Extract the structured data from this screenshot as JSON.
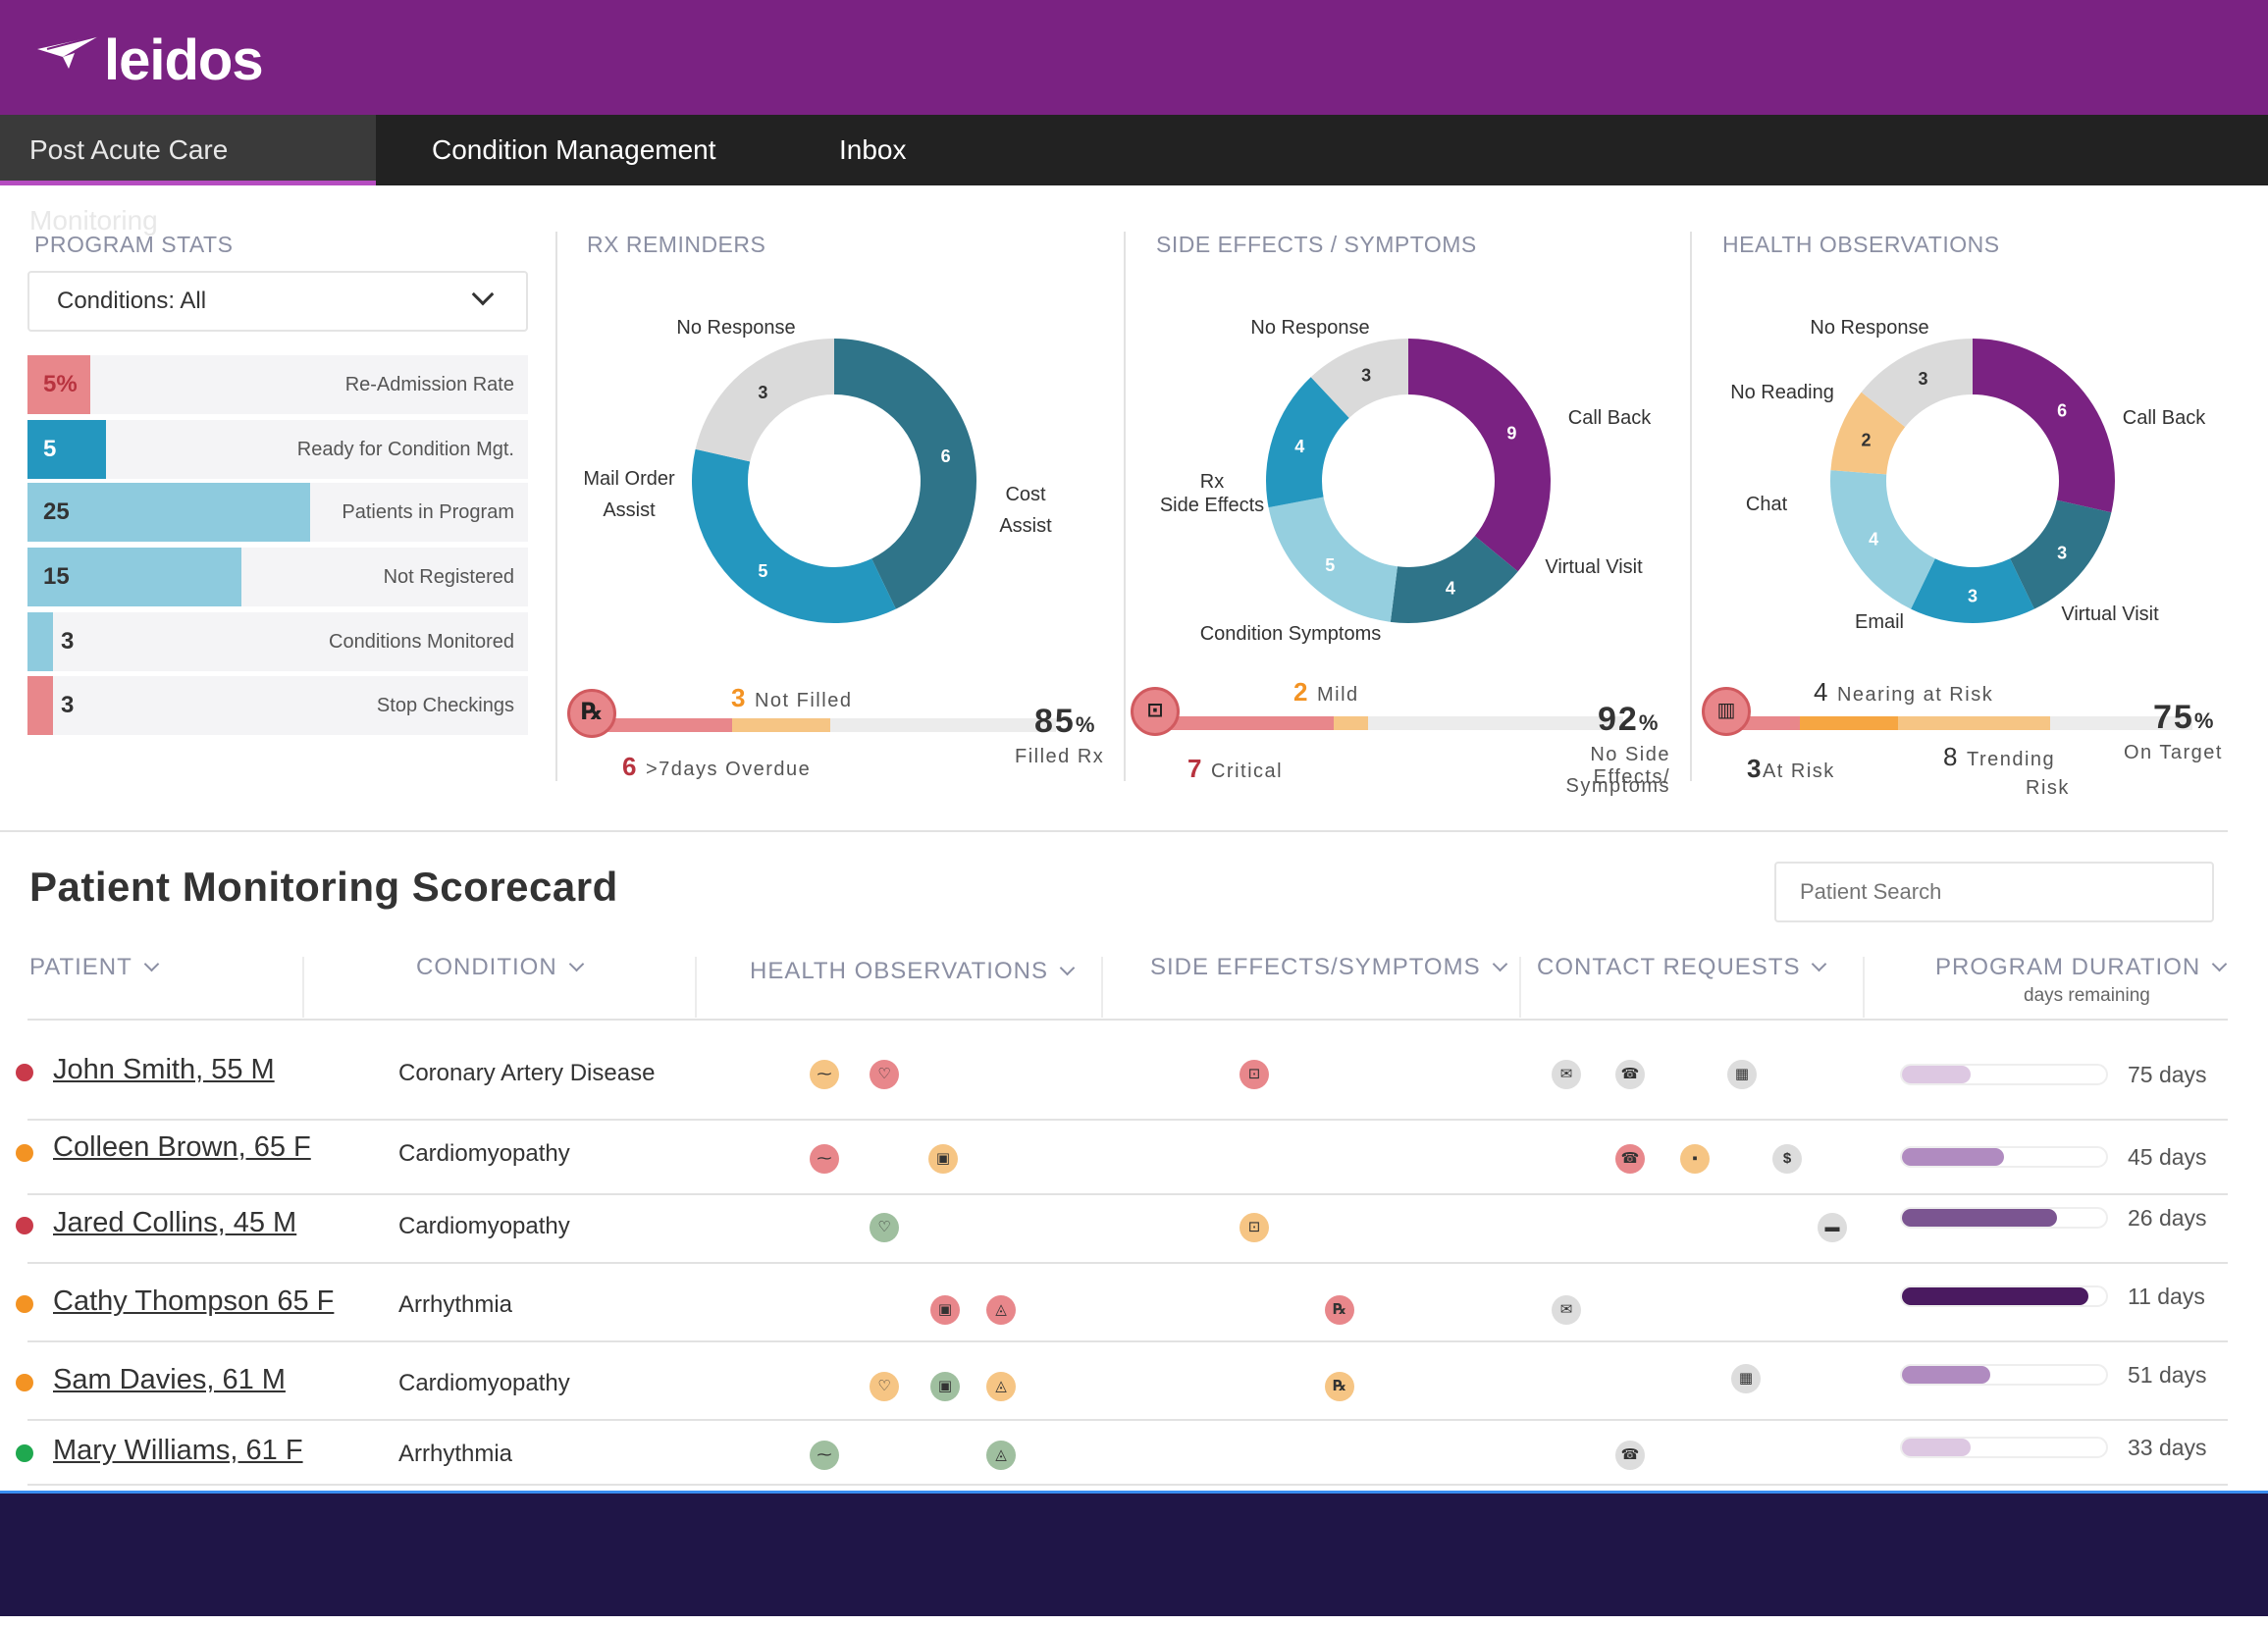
{
  "brand": {
    "name": "leidos",
    "color": "#7a2282"
  },
  "nav": {
    "tabs": [
      {
        "label": "Post Acute Care Monitoring",
        "active": true
      },
      {
        "label": "Condition Management"
      },
      {
        "label": "Inbox"
      }
    ]
  },
  "program_stats": {
    "title": "PROGRAM STATS",
    "filter": "Conditions: All",
    "rows": [
      {
        "value": "5%",
        "label": "Re-Admission Rate",
        "color": "#e8878b"
      },
      {
        "value": "5",
        "label": "Ready for Condition Mgt.",
        "color": "#2497bf"
      },
      {
        "value": "25",
        "label": "Patients in Program",
        "color": "#8ecbde"
      },
      {
        "value": "15",
        "label": "Not Registered",
        "color": "#8ecbde"
      },
      {
        "value": "3",
        "label": "Conditions Monitored",
        "color": "#8ecbde"
      },
      {
        "value": "3",
        "label": "Stop Checkings",
        "color": "#e8878b"
      }
    ]
  },
  "rx": {
    "title": "RX REMINDERS",
    "segments": [
      {
        "label": "No Response",
        "value": 3
      },
      {
        "label": "Cost Assist",
        "value": 6
      },
      {
        "label": "Mail Order Assist",
        "value": 5
      }
    ],
    "label_no_response": "No Response",
    "label_mail_1": "Mail Order",
    "label_mail_2": "Assist",
    "label_cost_1": "Cost",
    "label_cost_2": "Assist",
    "icon": "rx-icon",
    "icon_text": "℞",
    "not_filled_n": "3",
    "not_filled_label": "Not Filled",
    "overdue_n": "6",
    "overdue_label": ">7days Overdue",
    "pct": "85",
    "pct_sign": "%",
    "pct_label": "Filled Rx"
  },
  "side": {
    "title": "SIDE EFFECTS / SYMPTOMS",
    "segments": [
      {
        "label": "Call Back",
        "value": 9
      },
      {
        "label": "Virtual Visit",
        "value": 4
      },
      {
        "label": "Condition Symptoms",
        "value": 5
      },
      {
        "label": "Rx Side Effects",
        "value": 4
      },
      {
        "label": "No Response",
        "value": 3
      }
    ],
    "label_no_response": "No Response",
    "label_call_back": "Call Back",
    "label_rx_1": "Rx",
    "label_rx_2": "Side Effects",
    "label_virtual": "Virtual Visit",
    "label_condition": "Condition Symptoms",
    "icon": "symptom-icon",
    "mild_n": "2",
    "mild_label": "Mild",
    "critical_n": "7",
    "critical_label": "Critical",
    "pct": "92",
    "pct_sign": "%",
    "pct_label_1": "No Side Effects/",
    "pct_label_2": "Symptoms"
  },
  "health": {
    "title": "HEALTH OBSERVATIONS",
    "segments": [
      {
        "label": "Call Back",
        "value": 6
      },
      {
        "label": "Virtual Visit",
        "value": 3
      },
      {
        "label": "Email",
        "value": 3
      },
      {
        "label": "Chat",
        "value": 4
      },
      {
        "label": "No Reading",
        "value": 2
      },
      {
        "label": "No Response",
        "value": 3
      }
    ],
    "label_no_response": "No Response",
    "label_no_reading": "No Reading",
    "label_call_back": "Call Back",
    "label_chat": "Chat",
    "label_email": "Email",
    "label_virtual": "Virtual Visit",
    "icon": "bar-chart-icon",
    "nearing_n": "4",
    "nearing_label": "Nearing at Risk",
    "atrisk_n": "3",
    "atrisk_label": "At Risk",
    "trending_n": "8",
    "trending_label_1": "Trending",
    "trending_label_2": "Risk",
    "pct": "75",
    "pct_sign": "%",
    "pct_label": "On Target"
  },
  "scorecard": {
    "title": "Patient Monitoring Scorecard",
    "search_placeholder": "Patient Search",
    "columns": {
      "patient": "PATIENT",
      "condition": "CONDITION",
      "health": "HEALTH OBSERVATIONS",
      "side": "SIDE EFFECTS/SYMPTOMS",
      "contact": "CONTACT REQUESTS",
      "duration": "PROGRAM DURATION",
      "duration_sub": "days remaining"
    },
    "patients": [
      {
        "name": "John Smith, 55 M",
        "condition": "Coronary Artery Disease",
        "days": "75 days",
        "remaining": 75,
        "status": "#c93a4a"
      },
      {
        "name": "Colleen Brown, 65 F",
        "condition": "Cardiomyopathy",
        "days": "45 days",
        "remaining": 45,
        "status": "#f39323"
      },
      {
        "name": "Jared Collins, 45 M",
        "condition": "Cardiomyopathy",
        "days": "26 days",
        "remaining": 26,
        "status": "#c93a4a"
      },
      {
        "name": "Cathy Thompson 65 F",
        "condition": "Arrhythmia",
        "days": "11 days",
        "remaining": 11,
        "status": "#f39323"
      },
      {
        "name": "Sam Davies, 61 M",
        "condition": "Cardiomyopathy",
        "days": "51 days",
        "remaining": 51,
        "status": "#f39323"
      },
      {
        "name": "Mary Williams, 61 F",
        "condition": "Arrhythmia",
        "days": "33 days",
        "remaining": 33,
        "status": "#1fa84f"
      }
    ]
  },
  "colors": {
    "teal_dark": "#2f7489",
    "teal": "#2497bf",
    "teal_light": "#95cfdf",
    "purple": "#7a2282",
    "orange_light": "#f6c584",
    "gray": "#dadada",
    "red": "#e8878b"
  }
}
